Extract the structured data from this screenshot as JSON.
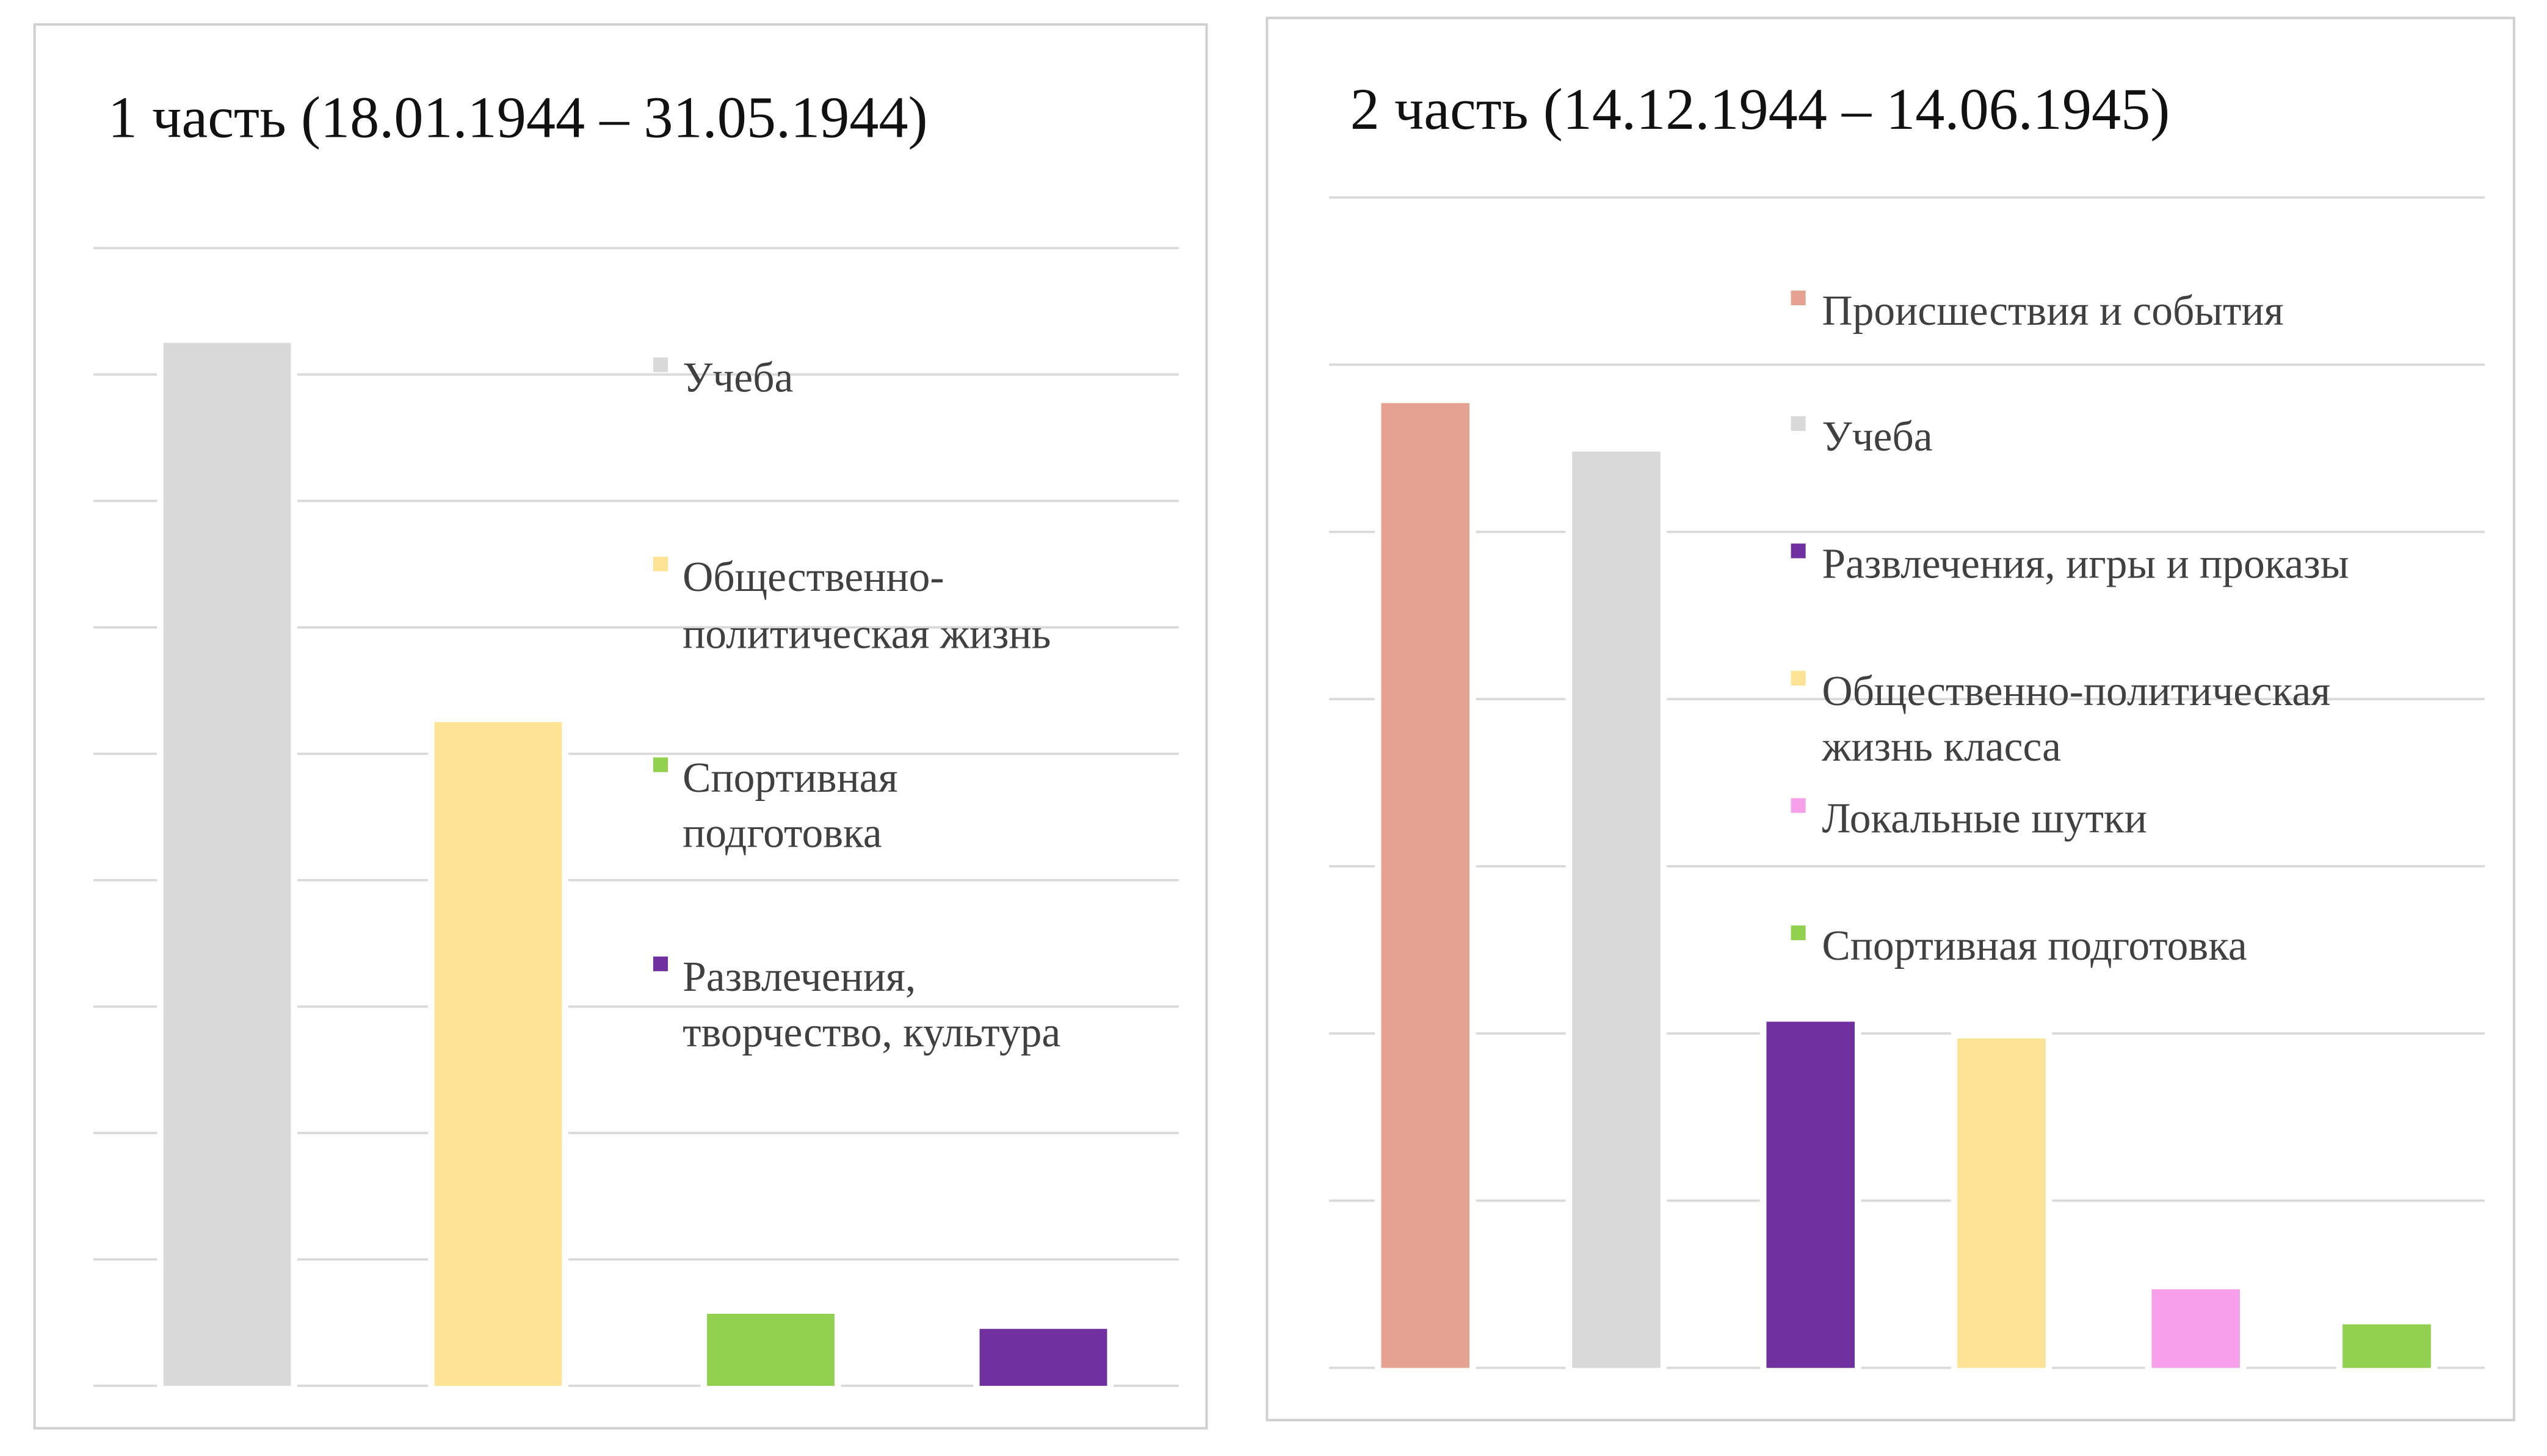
{
  "chart_data": [
    {
      "type": "bar",
      "title": "1 часть (18.01.1944 – 31.05.1944)",
      "xlabel": "",
      "ylabel": "",
      "ylim": [
        0,
        9
      ],
      "grid": true,
      "legend_placement": "right",
      "series": [
        {
          "name": "Учеба",
          "lines": [
            "Учеба"
          ],
          "value": 8.25,
          "color": "#d9d9d9"
        },
        {
          "name": "Общественно-политическая жизнь",
          "lines": [
            "Общественно-",
            "политическая жизнь"
          ],
          "value": 5.25,
          "color": "#fde396"
        },
        {
          "name": "Спортивная подготовка",
          "lines": [
            "Спортивная",
            "подготовка"
          ],
          "value": 0.57,
          "color": "#92d050"
        },
        {
          "name": "Развлечения, творчество, культура",
          "lines": [
            "Развлечения,",
            "творчество, культура"
          ],
          "value": 0.45,
          "color": "#7030a0"
        }
      ]
    },
    {
      "type": "bar",
      "title": "2 часть (14.12.1944 – 14.06.1945)",
      "xlabel": "",
      "ylabel": "",
      "ylim": [
        0,
        7
      ],
      "grid": true,
      "legend_placement": "right",
      "series": [
        {
          "name": "Происшествия и события",
          "lines": [
            "Происшествия и события"
          ],
          "value": 5.77,
          "color": "#e6a290"
        },
        {
          "name": "Учеба",
          "lines": [
            "Учеба"
          ],
          "value": 5.48,
          "color": "#d9d9d9"
        },
        {
          "name": "Развлечения, игры и проказы",
          "lines": [
            "Развлечения, игры и проказы"
          ],
          "value": 2.07,
          "color": "#7030a0"
        },
        {
          "name": "Общественно-политическая жизнь класса",
          "lines": [
            "Общественно-политическая",
            "жизнь класса"
          ],
          "value": 1.97,
          "color": "#fde396"
        },
        {
          "name": "Локальные шутки",
          "lines": [
            "Локальные шутки"
          ],
          "value": 0.47,
          "color": "#f5a0e8"
        },
        {
          "name": "Спортивная подготовка",
          "lines": [
            "Спортивная подготовка"
          ],
          "value": 0.26,
          "color": "#92d050"
        }
      ]
    }
  ]
}
